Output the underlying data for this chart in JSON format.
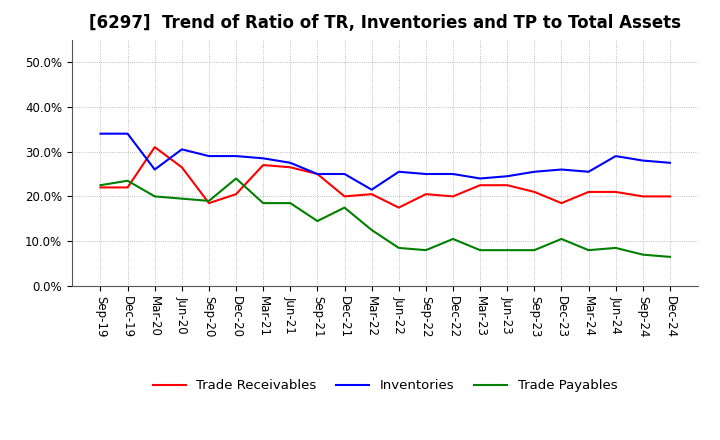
{
  "title": "[6297]  Trend of Ratio of TR, Inventories and TP to Total Assets",
  "x_labels": [
    "Sep-19",
    "Dec-19",
    "Mar-20",
    "Jun-20",
    "Sep-20",
    "Dec-20",
    "Mar-21",
    "Jun-21",
    "Sep-21",
    "Dec-21",
    "Mar-22",
    "Jun-22",
    "Sep-22",
    "Dec-22",
    "Mar-23",
    "Jun-23",
    "Sep-23",
    "Dec-23",
    "Mar-24",
    "Jun-24",
    "Sep-24",
    "Dec-24"
  ],
  "trade_receivables": [
    0.22,
    0.22,
    0.31,
    0.265,
    0.185,
    0.205,
    0.27,
    0.265,
    0.25,
    0.2,
    0.205,
    0.175,
    0.205,
    0.2,
    0.225,
    0.225,
    0.21,
    0.185,
    0.21,
    0.21,
    0.2,
    0.2
  ],
  "inventories": [
    0.34,
    0.34,
    0.26,
    0.305,
    0.29,
    0.29,
    0.285,
    0.275,
    0.25,
    0.25,
    0.215,
    0.255,
    0.25,
    0.25,
    0.24,
    0.245,
    0.255,
    0.26,
    0.255,
    0.29,
    0.28,
    0.275
  ],
  "trade_payables": [
    0.225,
    0.235,
    0.2,
    0.195,
    0.19,
    0.24,
    0.185,
    0.185,
    0.145,
    0.175,
    0.125,
    0.085,
    0.08,
    0.105,
    0.08,
    0.08,
    0.08,
    0.105,
    0.08,
    0.085,
    0.07,
    0.065
  ],
  "ylim": [
    0.0,
    0.55
  ],
  "yticks": [
    0.0,
    0.1,
    0.2,
    0.3,
    0.4,
    0.5
  ],
  "legend_labels": [
    "Trade Receivables",
    "Inventories",
    "Trade Payables"
  ],
  "colors": {
    "trade_receivables": "#ff0000",
    "inventories": "#0000ff",
    "trade_payables": "#008000"
  },
  "background_color": "#ffffff",
  "grid_color": "#aaaaaa",
  "title_fontsize": 12,
  "axis_fontsize": 8.5,
  "legend_fontsize": 9.5
}
